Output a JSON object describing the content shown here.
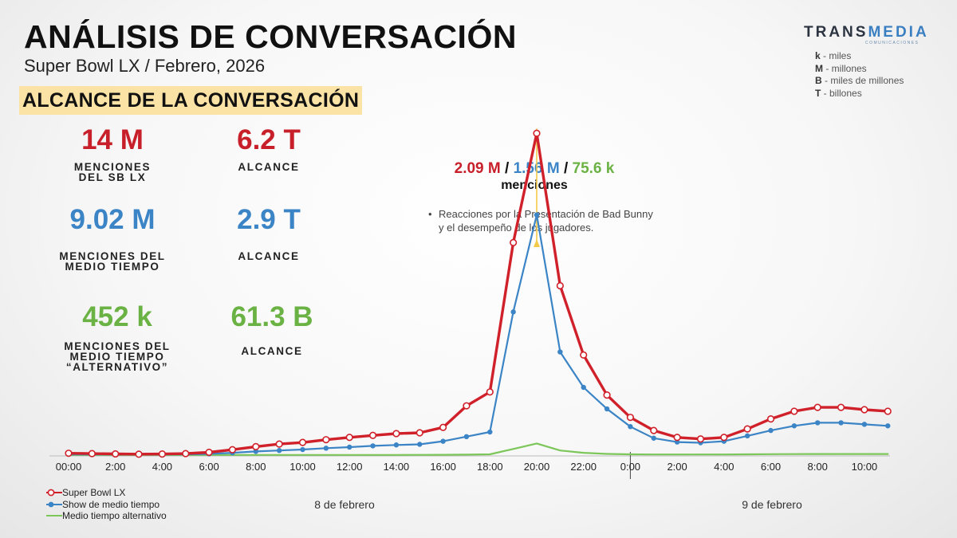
{
  "header": {
    "title": "ANÁLISIS DE CONVERSACIÓN",
    "subtitle": "Super Bowl LX / Febrero, 2026",
    "section_title": "ALCANCE DE LA CONVERSACIÓN"
  },
  "logo": {
    "part1": "TRANS",
    "part2": "MEDIA",
    "tagline": "COMUNICACIONES"
  },
  "units_legend": [
    {
      "key": "k",
      "desc": " - miles"
    },
    {
      "key": "M",
      "desc": " - millones"
    },
    {
      "key": "B",
      "desc": " - miles de millones"
    },
    {
      "key": "T",
      "desc": " - billones"
    }
  ],
  "stats": {
    "sb_mentions": {
      "value": "14 M",
      "label_1": "MENCIONES",
      "label_2": "DEL SB LX"
    },
    "sb_reach": {
      "value": "6.2 T",
      "label_1": "ALCANCE"
    },
    "halftime_mentions": {
      "value": "9.02 M",
      "label_1": "MENCIONES DEL",
      "label_2": "MEDIO TIEMPO"
    },
    "halftime_reach": {
      "value": "2.9 T",
      "label_1": "ALCANCE"
    },
    "alt_mentions": {
      "value": "452 k",
      "label_1": "MENCIONES DEL",
      "label_2": "MEDIO TIEMPO",
      "label_3": "“ALTERNATIVO”"
    },
    "alt_reach": {
      "value": "61.3 B",
      "label_1": "ALCANCE"
    }
  },
  "peak": {
    "sb": "2.09 M",
    "sep1": " / ",
    "halftime": "1.56 M",
    "sep2": " / ",
    "alt": "75.6 k",
    "caption": "menciones",
    "bullet": "•",
    "annotation": "Reacciones por la Presentación de Bad Bunny y el desempeño de los jugadores."
  },
  "colors": {
    "sb": "#d0202a",
    "halftime": "#3b84c6",
    "alt": "#7cc65a",
    "arrow": "#f3c94a",
    "axis": "#bbbbbb"
  },
  "chart_data": {
    "type": "line",
    "x": [
      "00:00",
      "01:00",
      "02:00",
      "03:00",
      "04:00",
      "05:00",
      "06:00",
      "07:00",
      "08:00",
      "09:00",
      "10:00",
      "11:00",
      "12:00",
      "13:00",
      "14:00",
      "15:00",
      "16:00",
      "17:00",
      "18:00",
      "19:00",
      "20:00",
      "21:00",
      "22:00",
      "23:00",
      "0:00",
      "01:00",
      "02:00",
      "03:00",
      "04:00",
      "05:00",
      "06:00",
      "07:00",
      "08:00",
      "09:00",
      "10:00",
      "11:00"
    ],
    "tick_labels": [
      "00:00",
      "2:00",
      "4:00",
      "6:00",
      "8:00",
      "10:00",
      "12:00",
      "14:00",
      "16:00",
      "18:00",
      "20:00",
      "22:00",
      "0:00",
      "2:00",
      "4:00",
      "6:00",
      "8:00",
      "10:00"
    ],
    "day_labels": [
      "8 de febrero",
      "9 de febrero"
    ],
    "ylim": [
      0,
      2200000
    ],
    "series": [
      {
        "name": "Super Bowl LX",
        "values": [
          12000,
          10000,
          8000,
          6000,
          7000,
          10000,
          18000,
          35000,
          55000,
          72000,
          82000,
          100000,
          115000,
          128000,
          140000,
          145000,
          180000,
          320000,
          410000,
          1380000,
          2090000,
          1100000,
          650000,
          390000,
          245000,
          160000,
          115000,
          105000,
          115000,
          170000,
          235000,
          285000,
          310000,
          310000,
          295000,
          285000
        ]
      },
      {
        "name": "Show de medio tiempo",
        "values": [
          5000,
          4000,
          4000,
          3000,
          4000,
          5000,
          8000,
          15000,
          24000,
          30000,
          36000,
          45000,
          52000,
          60000,
          66000,
          70000,
          90000,
          120000,
          150000,
          930000,
          1560000,
          670000,
          440000,
          300000,
          185000,
          110000,
          85000,
          80000,
          90000,
          125000,
          160000,
          190000,
          210000,
          210000,
          200000,
          190000
        ]
      },
      {
        "name": "Medio tiempo alternativo",
        "values": [
          1000,
          1000,
          1000,
          1000,
          1000,
          1000,
          1000,
          1000,
          1000,
          1000,
          1000,
          1000,
          1000,
          1000,
          1000,
          1500,
          2000,
          3000,
          5000,
          40000,
          75600,
          30000,
          15000,
          8000,
          5000,
          4000,
          4000,
          4000,
          4000,
          5000,
          6000,
          6500,
          7000,
          7000,
          7000,
          7000
        ]
      }
    ],
    "legend": [
      "Super Bowl LX",
      "Show de medio tiempo",
      "Medio tiempo alternativo"
    ],
    "grid": false
  }
}
